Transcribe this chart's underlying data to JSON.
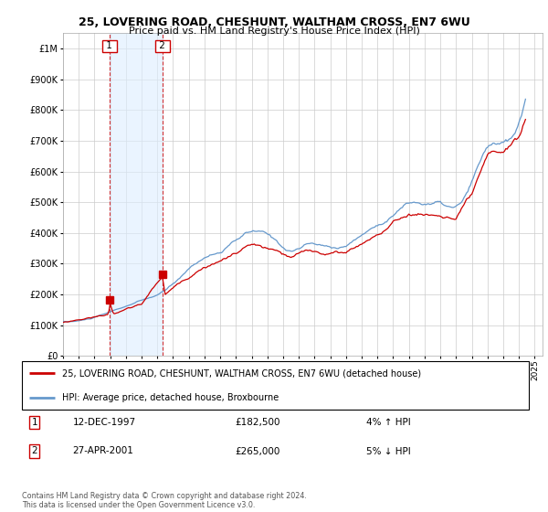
{
  "title": "25, LOVERING ROAD, CHESHUNT, WALTHAM CROSS, EN7 6WU",
  "subtitle": "Price paid vs. HM Land Registry's House Price Index (HPI)",
  "legend_line1": "25, LOVERING ROAD, CHESHUNT, WALTHAM CROSS, EN7 6WU (detached house)",
  "legend_line2": "HPI: Average price, detached house, Broxbourne",
  "annotation1_label": "1",
  "annotation1_date": "12-DEC-1997",
  "annotation1_price": "£182,500",
  "annotation1_hpi": "4% ↑ HPI",
  "annotation2_label": "2",
  "annotation2_date": "27-APR-2001",
  "annotation2_price": "£265,000",
  "annotation2_hpi": "5% ↓ HPI",
  "footer": "Contains HM Land Registry data © Crown copyright and database right 2024.\nThis data is licensed under the Open Government Licence v3.0.",
  "purchase_color": "#cc0000",
  "hpi_color": "#6699cc",
  "hpi_fill_color": "#ddeeff",
  "shade_fill_color": "#ddeeff",
  "background_color": "#ffffff",
  "grid_color": "#cccccc",
  "ylim": [
    0,
    1050000
  ],
  "yticks": [
    0,
    100000,
    200000,
    300000,
    400000,
    500000,
    600000,
    700000,
    800000,
    900000,
    1000000
  ],
  "purchase1_year": 1997.958,
  "purchase1_value": 182500,
  "purchase2_year": 2001.32,
  "purchase2_value": 265000,
  "xlim": [
    1995.0,
    2025.5
  ],
  "xticks": [
    1995,
    1996,
    1997,
    1998,
    1999,
    2000,
    2001,
    2002,
    2003,
    2004,
    2005,
    2006,
    2007,
    2008,
    2009,
    2010,
    2011,
    2012,
    2013,
    2014,
    2015,
    2016,
    2017,
    2018,
    2019,
    2020,
    2021,
    2022,
    2023,
    2024,
    2025
  ]
}
